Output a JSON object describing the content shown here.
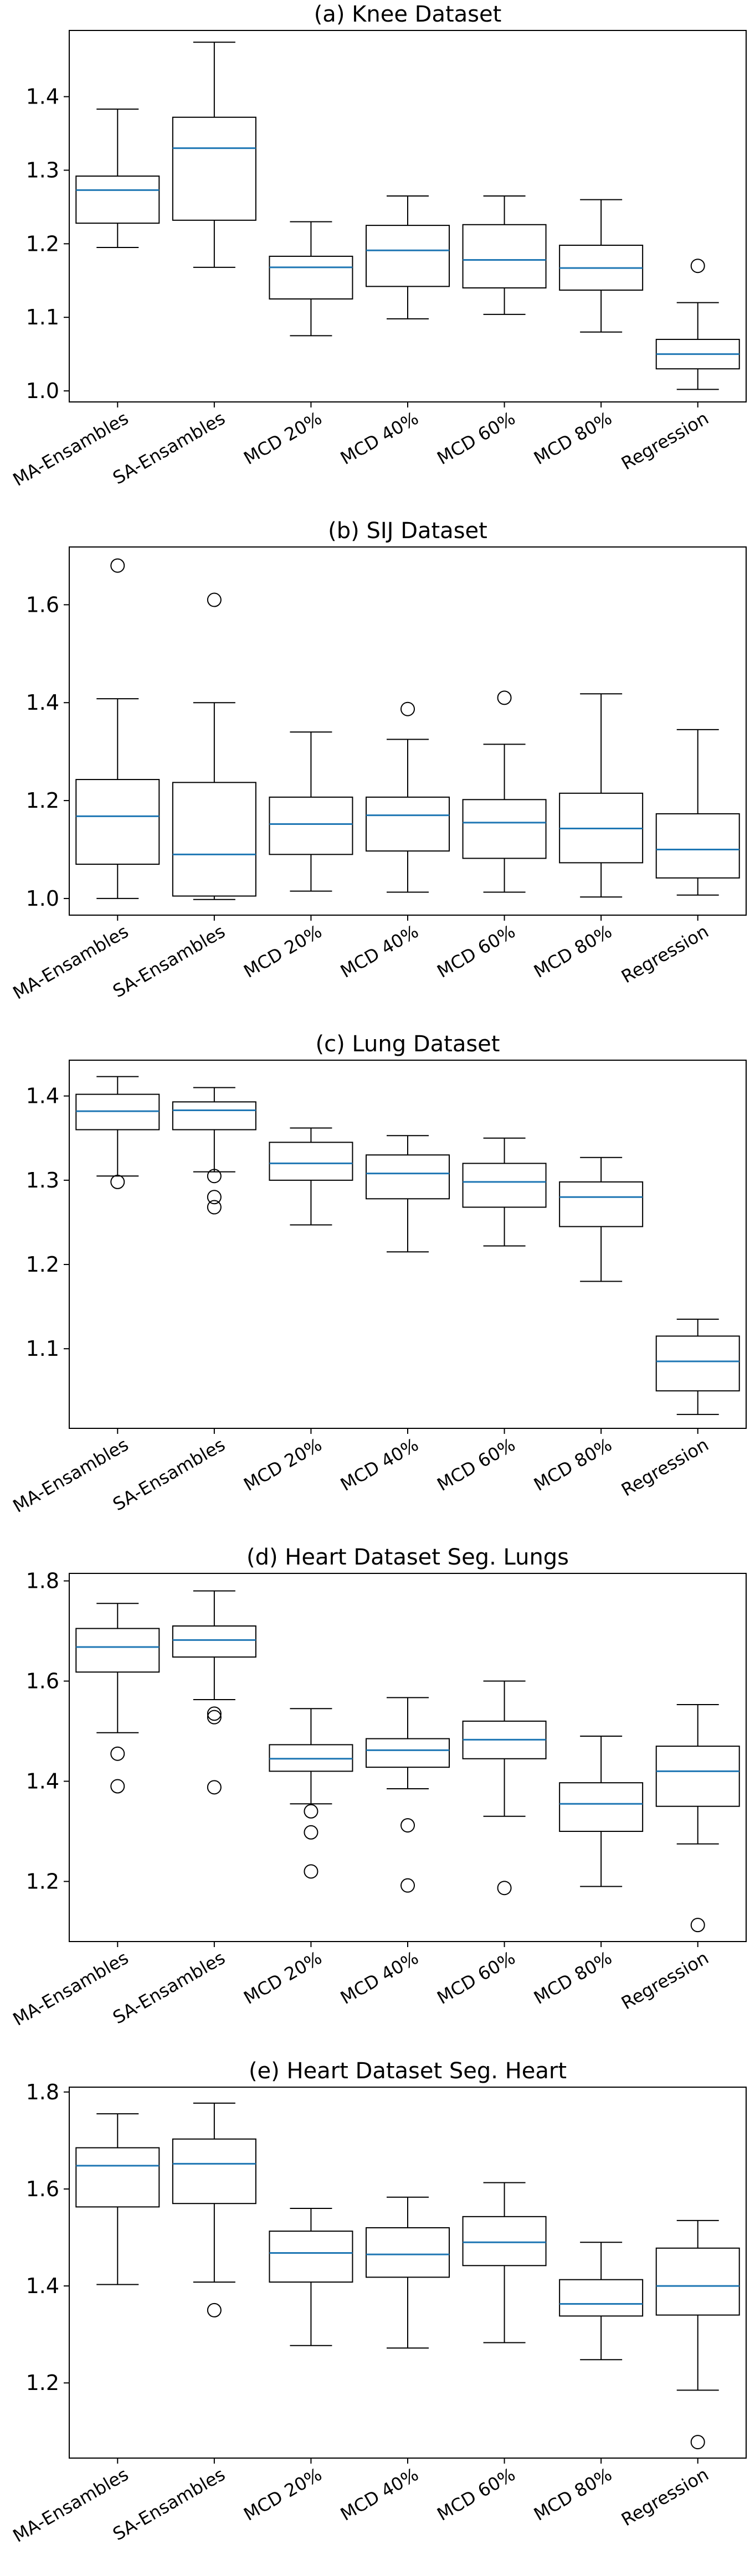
{
  "chart_data": [
    {
      "type": "box",
      "title": "(a) Knee Dataset",
      "categories": [
        "MA-Ensambles",
        "SA-Ensambles",
        "MCD 20%",
        "MCD 40%",
        "MCD 60%",
        "MCD 80%",
        "Regression"
      ],
      "ylim": [
        0.985,
        1.49
      ],
      "yticks": [
        1.0,
        1.1,
        1.2,
        1.3,
        1.4
      ],
      "ytick_labels": [
        "1.0",
        "1.1",
        "1.2",
        "1.3",
        "1.4"
      ],
      "boxes": [
        {
          "whislo": 1.195,
          "q1": 1.228,
          "med": 1.273,
          "q3": 1.292,
          "whishi": 1.383,
          "fliers": []
        },
        {
          "whislo": 1.168,
          "q1": 1.232,
          "med": 1.33,
          "q3": 1.372,
          "whishi": 1.474,
          "fliers": []
        },
        {
          "whislo": 1.075,
          "q1": 1.125,
          "med": 1.168,
          "q3": 1.183,
          "whishi": 1.23,
          "fliers": []
        },
        {
          "whislo": 1.098,
          "q1": 1.142,
          "med": 1.191,
          "q3": 1.225,
          "whishi": 1.265,
          "fliers": []
        },
        {
          "whislo": 1.104,
          "q1": 1.14,
          "med": 1.178,
          "q3": 1.226,
          "whishi": 1.265,
          "fliers": []
        },
        {
          "whislo": 1.08,
          "q1": 1.137,
          "med": 1.167,
          "q3": 1.198,
          "whishi": 1.26,
          "fliers": []
        },
        {
          "whislo": 1.002,
          "q1": 1.03,
          "med": 1.05,
          "q3": 1.07,
          "whishi": 1.12,
          "fliers": [
            1.17
          ]
        }
      ]
    },
    {
      "type": "box",
      "title": "(b) SIJ Dataset",
      "categories": [
        "MA-Ensambles",
        "SA-Ensambles",
        "MCD 20%",
        "MCD 40%",
        "MCD 60%",
        "MCD 80%",
        "Regression"
      ],
      "ylim": [
        0.966,
        1.718
      ],
      "yticks": [
        1.0,
        1.2,
        1.4,
        1.6
      ],
      "ytick_labels": [
        "1.0",
        "1.2",
        "1.4",
        "1.6"
      ],
      "boxes": [
        {
          "whislo": 1.0,
          "q1": 1.07,
          "med": 1.168,
          "q3": 1.243,
          "whishi": 1.408,
          "fliers": [
            1.68
          ]
        },
        {
          "whislo": 0.998,
          "q1": 1.005,
          "med": 1.09,
          "q3": 1.237,
          "whishi": 1.4,
          "fliers": [
            1.61
          ]
        },
        {
          "whislo": 1.015,
          "q1": 1.09,
          "med": 1.152,
          "q3": 1.207,
          "whishi": 1.34,
          "fliers": []
        },
        {
          "whislo": 1.013,
          "q1": 1.097,
          "med": 1.17,
          "q3": 1.207,
          "whishi": 1.325,
          "fliers": [
            1.387
          ]
        },
        {
          "whislo": 1.013,
          "q1": 1.082,
          "med": 1.155,
          "q3": 1.202,
          "whishi": 1.315,
          "fliers": [
            1.41
          ]
        },
        {
          "whislo": 1.003,
          "q1": 1.073,
          "med": 1.143,
          "q3": 1.215,
          "whishi": 1.418,
          "fliers": []
        },
        {
          "whislo": 1.007,
          "q1": 1.042,
          "med": 1.1,
          "q3": 1.173,
          "whishi": 1.345,
          "fliers": []
        }
      ]
    },
    {
      "type": "box",
      "title": "(c) Lung Dataset",
      "categories": [
        "MA-Ensambles",
        "SA-Ensambles",
        "MCD 20%",
        "MCD 40%",
        "MCD 60%",
        "MCD 80%",
        "Regression"
      ],
      "ylim": [
        1.0055,
        1.4425
      ],
      "yticks": [
        1.1,
        1.2,
        1.3,
        1.4
      ],
      "ytick_labels": [
        "1.1",
        "1.2",
        "1.3",
        "1.4"
      ],
      "boxes": [
        {
          "whislo": 1.305,
          "q1": 1.36,
          "med": 1.382,
          "q3": 1.402,
          "whishi": 1.423,
          "fliers": [
            1.298
          ]
        },
        {
          "whislo": 1.31,
          "q1": 1.36,
          "med": 1.383,
          "q3": 1.393,
          "whishi": 1.41,
          "fliers": [
            1.305,
            1.28,
            1.268
          ]
        },
        {
          "whislo": 1.247,
          "q1": 1.3,
          "med": 1.32,
          "q3": 1.345,
          "whishi": 1.362,
          "fliers": []
        },
        {
          "whislo": 1.215,
          "q1": 1.278,
          "med": 1.308,
          "q3": 1.33,
          "whishi": 1.353,
          "fliers": []
        },
        {
          "whislo": 1.222,
          "q1": 1.268,
          "med": 1.298,
          "q3": 1.32,
          "whishi": 1.35,
          "fliers": []
        },
        {
          "whislo": 1.18,
          "q1": 1.245,
          "med": 1.28,
          "q3": 1.298,
          "whishi": 1.327,
          "fliers": []
        },
        {
          "whislo": 1.022,
          "q1": 1.05,
          "med": 1.085,
          "q3": 1.115,
          "whishi": 1.135,
          "fliers": []
        }
      ]
    },
    {
      "type": "box",
      "title": "(d) Heart Dataset Seg. Lungs",
      "categories": [
        "MA-Ensambles",
        "SA-Ensambles",
        "MCD 20%",
        "MCD 40%",
        "MCD 60%",
        "MCD 80%",
        "Regression"
      ],
      "ylim": [
        1.08,
        1.815
      ],
      "yticks": [
        1.2,
        1.4,
        1.6,
        1.8
      ],
      "ytick_labels": [
        "1.2",
        "1.4",
        "1.6",
        "1.8"
      ],
      "boxes": [
        {
          "whislo": 1.497,
          "q1": 1.618,
          "med": 1.668,
          "q3": 1.705,
          "whishi": 1.755,
          "fliers": [
            1.455,
            1.39
          ]
        },
        {
          "whislo": 1.563,
          "q1": 1.648,
          "med": 1.682,
          "q3": 1.71,
          "whishi": 1.78,
          "fliers": [
            1.535,
            1.528,
            1.388
          ]
        },
        {
          "whislo": 1.355,
          "q1": 1.42,
          "med": 1.445,
          "q3": 1.473,
          "whishi": 1.545,
          "fliers": [
            1.34,
            1.298,
            1.22
          ]
        },
        {
          "whislo": 1.385,
          "q1": 1.428,
          "med": 1.462,
          "q3": 1.485,
          "whishi": 1.567,
          "fliers": [
            1.312,
            1.192
          ]
        },
        {
          "whislo": 1.33,
          "q1": 1.445,
          "med": 1.483,
          "q3": 1.52,
          "whishi": 1.6,
          "fliers": [
            1.187
          ]
        },
        {
          "whislo": 1.19,
          "q1": 1.3,
          "med": 1.355,
          "q3": 1.397,
          "whishi": 1.49,
          "fliers": []
        },
        {
          "whislo": 1.275,
          "q1": 1.35,
          "med": 1.42,
          "q3": 1.47,
          "whishi": 1.553,
          "fliers": [
            1.113
          ]
        }
      ]
    },
    {
      "type": "box",
      "title": "(e) Heart Dataset Seg. Heart",
      "categories": [
        "MA-Ensambles",
        "SA-Ensambles",
        "MCD 20%",
        "MCD 40%",
        "MCD 60%",
        "MCD 80%",
        "Regression"
      ],
      "ylim": [
        1.045,
        1.81
      ],
      "yticks": [
        1.2,
        1.4,
        1.6,
        1.8
      ],
      "ytick_labels": [
        "1.2",
        "1.4",
        "1.6",
        "1.8"
      ],
      "boxes": [
        {
          "whislo": 1.403,
          "q1": 1.563,
          "med": 1.648,
          "q3": 1.685,
          "whishi": 1.755,
          "fliers": []
        },
        {
          "whislo": 1.408,
          "q1": 1.57,
          "med": 1.652,
          "q3": 1.703,
          "whishi": 1.777,
          "fliers": [
            1.35
          ]
        },
        {
          "whislo": 1.277,
          "q1": 1.408,
          "med": 1.468,
          "q3": 1.513,
          "whishi": 1.56,
          "fliers": []
        },
        {
          "whislo": 1.272,
          "q1": 1.418,
          "med": 1.465,
          "q3": 1.52,
          "whishi": 1.583,
          "fliers": []
        },
        {
          "whislo": 1.283,
          "q1": 1.442,
          "med": 1.49,
          "q3": 1.543,
          "whishi": 1.613,
          "fliers": []
        },
        {
          "whislo": 1.248,
          "q1": 1.338,
          "med": 1.363,
          "q3": 1.413,
          "whishi": 1.49,
          "fliers": []
        },
        {
          "whislo": 1.185,
          "q1": 1.34,
          "med": 1.4,
          "q3": 1.478,
          "whishi": 1.535,
          "fliers": [
            1.078
          ]
        }
      ]
    }
  ],
  "colors": {
    "median": "#1f77b4",
    "box_stroke": "#000000",
    "axes": "#000000",
    "background": "#ffffff"
  }
}
